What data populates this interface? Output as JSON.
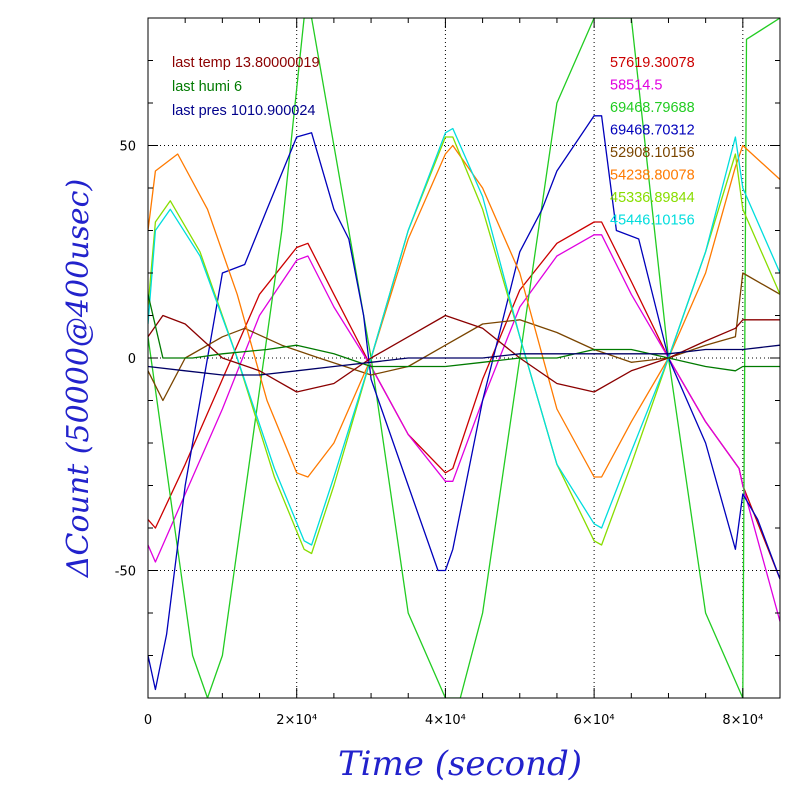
{
  "chart_data": {
    "type": "line",
    "xlabel": "Time (second)",
    "ylabel": "ΔCount (50000@400usec)",
    "xlim": [
      0,
      85000
    ],
    "ylim": [
      -80,
      80
    ],
    "grid": true,
    "x_ticks": [
      {
        "value": 0,
        "label": "0"
      },
      {
        "value": 20000,
        "label": "2×10⁴"
      },
      {
        "value": 40000,
        "label": "4×10⁴"
      },
      {
        "value": 60000,
        "label": "6×10⁴"
      },
      {
        "value": 80000,
        "label": "8×10⁴"
      }
    ],
    "y_ticks": [
      {
        "value": -50,
        "label": "-50"
      },
      {
        "value": 0,
        "label": "0"
      },
      {
        "value": 50,
        "label": "50"
      }
    ],
    "left_legend": [
      {
        "text": "last temp 13.80000019",
        "color": "#8b0000"
      },
      {
        "text": "last humi 6",
        "color": "#007a00"
      },
      {
        "text": "last pres 1010.900024",
        "color": "#00008b"
      }
    ],
    "series": [
      {
        "name": "57619.30078",
        "color": "#cc0000",
        "x": [
          0,
          1000,
          5000,
          10000,
          15000,
          20000,
          21500,
          25000,
          30000,
          35000,
          40000,
          41000,
          45000,
          50000,
          55000,
          60000,
          61000,
          65000,
          70000,
          75000,
          79500,
          80000,
          85000
        ],
        "y": [
          -38,
          -40,
          -25,
          -5,
          15,
          26,
          27,
          15,
          -2,
          -18,
          -27,
          -26,
          -5,
          16,
          27,
          32,
          32,
          18,
          0,
          -15,
          -26,
          -30,
          -52
        ]
      },
      {
        "name": "58514.5",
        "color": "#e000e0",
        "x": [
          0,
          1000,
          5000,
          10000,
          15000,
          20000,
          21500,
          25000,
          30000,
          35000,
          40000,
          41000,
          45000,
          50000,
          55000,
          60000,
          61000,
          65000,
          70000,
          75000,
          79500,
          80000,
          85000
        ],
        "y": [
          -44,
          -48,
          -32,
          -12,
          10,
          23,
          24,
          12,
          -2,
          -18,
          -29,
          -29,
          -10,
          12,
          24,
          29,
          29,
          15,
          0,
          -15,
          -26,
          -30,
          -62
        ]
      },
      {
        "name": "69468.79688",
        "color": "#22cc22",
        "x": [
          0,
          2000,
          4000,
          6000,
          8000,
          10000,
          14000,
          18000,
          21000,
          22000,
          25000,
          30000,
          35000,
          40000,
          42000,
          45000,
          50000,
          55000,
          60000,
          65000,
          70000,
          75000,
          80000,
          80500,
          85000
        ],
        "y": [
          5,
          -20,
          -45,
          -70,
          -80,
          -70,
          -20,
          30,
          80,
          80,
          50,
          0,
          -60,
          -80,
          -80,
          -60,
          0,
          60,
          80,
          80,
          0,
          -60,
          -80,
          75,
          80
        ]
      },
      {
        "name": "69468.70312",
        "color": "#0000bb",
        "x": [
          0,
          1000,
          2500,
          5000,
          10000,
          13000,
          16000,
          20000,
          22000,
          25000,
          27000,
          29000,
          30000,
          35000,
          39000,
          40000,
          41000,
          45000,
          50000,
          53000,
          55000,
          60000,
          61000,
          63000,
          66000,
          70000,
          75000,
          79000,
          80000,
          82000,
          85000
        ],
        "y": [
          -70,
          -78,
          -65,
          -30,
          20,
          22,
          35,
          52,
          53,
          35,
          28,
          10,
          -5,
          -30,
          -50,
          -50,
          -45,
          -10,
          25,
          35,
          44,
          57,
          57,
          30,
          28,
          0,
          -20,
          -45,
          -32,
          -38,
          -52
        ]
      },
      {
        "name": "52908.10156",
        "color": "#7a4500",
        "x": [
          0,
          2000,
          5000,
          10000,
          13000,
          18000,
          23000,
          30000,
          35000,
          40000,
          45000,
          50000,
          55000,
          60000,
          65000,
          70000,
          75000,
          79000,
          80000,
          85000
        ],
        "y": [
          -3,
          -10,
          0,
          5,
          7,
          3,
          0,
          -4,
          -2,
          3,
          8,
          9,
          6,
          2,
          -1,
          0,
          3,
          5,
          20,
          15
        ]
      },
      {
        "name": "54238.80078",
        "color": "#ff7a00",
        "x": [
          0,
          1000,
          4000,
          8000,
          12000,
          16000,
          20000,
          21500,
          25000,
          30000,
          35000,
          40000,
          41000,
          45000,
          50000,
          55000,
          60000,
          61000,
          65000,
          70000,
          75000,
          79000,
          80000,
          85000
        ],
        "y": [
          30,
          44,
          48,
          35,
          15,
          -10,
          -27,
          -28,
          -20,
          0,
          28,
          48,
          50,
          40,
          20,
          -12,
          -28,
          -28,
          -15,
          0,
          20,
          45,
          50,
          42
        ]
      },
      {
        "name": "45336.89844",
        "color": "#88dd00",
        "x": [
          0,
          1000,
          3000,
          7000,
          12000,
          17000,
          21000,
          22000,
          25000,
          30000,
          35000,
          40000,
          41000,
          45000,
          50000,
          55000,
          60000,
          61000,
          65000,
          70000,
          75000,
          79000,
          80000,
          85000
        ],
        "y": [
          12,
          32,
          37,
          25,
          0,
          -28,
          -45,
          -46,
          -30,
          0,
          30,
          52,
          52,
          35,
          5,
          -25,
          -43,
          -44,
          -25,
          0,
          25,
          48,
          35,
          15
        ]
      },
      {
        "name": "45446.10156",
        "color": "#00dddd",
        "x": [
          0,
          1000,
          3000,
          7000,
          12000,
          17000,
          21000,
          22000,
          25000,
          30000,
          35000,
          40000,
          41000,
          45000,
          50000,
          55000,
          60000,
          61000,
          65000,
          70000,
          75000,
          79000,
          80000,
          85000
        ],
        "y": [
          8,
          30,
          35,
          24,
          0,
          -26,
          -43,
          -44,
          -28,
          0,
          30,
          53,
          54,
          38,
          5,
          -25,
          -39,
          -40,
          -22,
          0,
          25,
          52,
          40,
          20
        ]
      },
      {
        "name": "",
        "color": "#8b0000",
        "x": [
          0,
          2000,
          5000,
          10000,
          15000,
          20000,
          25000,
          30000,
          35000,
          40000,
          45000,
          50000,
          55000,
          60000,
          65000,
          70000,
          75000,
          79000,
          80000,
          85000
        ],
        "y": [
          5,
          10,
          8,
          0,
          -3,
          -8,
          -6,
          0,
          5,
          10,
          7,
          0,
          -6,
          -8,
          -3,
          0,
          4,
          7,
          9,
          9
        ]
      },
      {
        "name": "",
        "color": "#007a00",
        "x": [
          0,
          2000,
          6000,
          10000,
          16000,
          20000,
          25000,
          30000,
          35000,
          40000,
          45000,
          50000,
          55000,
          60000,
          65000,
          70000,
          75000,
          79000,
          80000,
          85000
        ],
        "y": [
          15,
          0,
          0,
          1,
          2,
          3,
          1,
          -2,
          -2,
          -2,
          -1,
          0,
          0,
          2,
          2,
          0,
          -2,
          -3,
          -2,
          -2
        ]
      },
      {
        "name": "",
        "color": "#000066",
        "x": [
          0,
          5000,
          10000,
          15000,
          20000,
          25000,
          30000,
          35000,
          40000,
          45000,
          50000,
          55000,
          60000,
          65000,
          70000,
          75000,
          80000,
          85000
        ],
        "y": [
          -2,
          -3,
          -4,
          -4,
          -3,
          -2,
          -1,
          0,
          0,
          0,
          1,
          1,
          1,
          1,
          1,
          2,
          2,
          3
        ]
      }
    ]
  }
}
